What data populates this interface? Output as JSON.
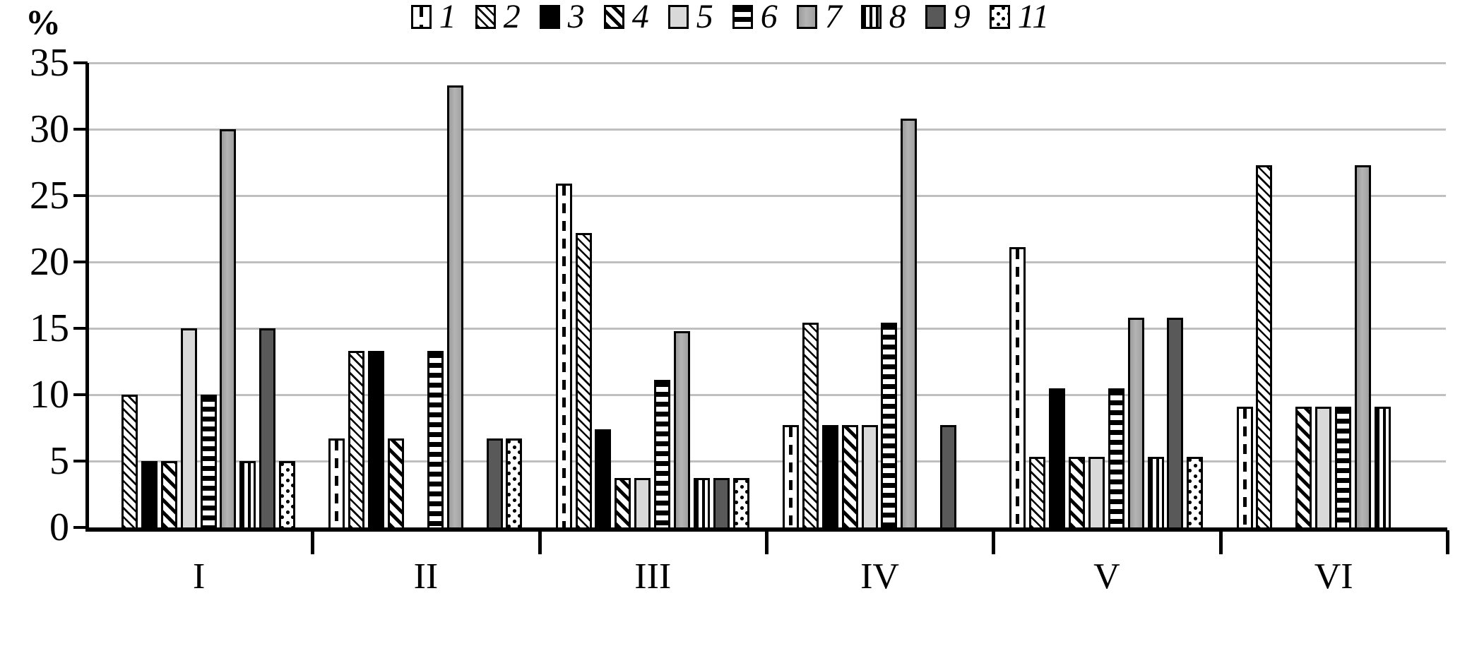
{
  "figure": {
    "background": "#ffffff",
    "bar_outline_color": "#000000",
    "gridline_color": "#bfbfbf",
    "axis_color": "#000000"
  },
  "chart_data": {
    "type": "bar",
    "title": "",
    "ylabel": "%",
    "xlabel": "",
    "ylim": [
      0,
      35
    ],
    "ytick_step": 5,
    "ytick_labels": [
      "0",
      "5",
      "10",
      "15",
      "20",
      "25",
      "30",
      "35"
    ],
    "grid": true,
    "legend_position": "bottom",
    "categories": [
      "I",
      "II",
      "III",
      "IV",
      "V",
      "VI"
    ],
    "series": [
      {
        "name": "1",
        "pattern": "white-vertical-dashed-line",
        "color": "#ffffff",
        "values": [
          0,
          6.7,
          25.9,
          7.7,
          21.1,
          9.1
        ]
      },
      {
        "name": "2",
        "pattern": "thin-diagonal-hatch",
        "color": "#ffffff",
        "values": [
          10.0,
          13.3,
          22.2,
          15.4,
          5.3,
          27.3
        ]
      },
      {
        "name": "3",
        "pattern": "solid-black",
        "color": "#000000",
        "values": [
          5.0,
          13.3,
          7.4,
          7.7,
          10.5,
          0
        ]
      },
      {
        "name": "4",
        "pattern": "bold-diagonal-hatch",
        "color": "#ffffff",
        "values": [
          5.0,
          6.7,
          3.7,
          7.7,
          5.3,
          9.1
        ]
      },
      {
        "name": "5",
        "pattern": "solid-light-gray",
        "color": "#d9d9d9",
        "values": [
          15.0,
          0,
          3.7,
          7.7,
          5.3,
          9.1
        ]
      },
      {
        "name": "6",
        "pattern": "horizontal-stripes",
        "color": "#ffffff",
        "values": [
          10.0,
          13.3,
          11.1,
          15.4,
          10.5,
          9.1
        ]
      },
      {
        "name": "7",
        "pattern": "solid-medium-gray",
        "color": "#a6a6a6",
        "values": [
          30.0,
          33.3,
          14.8,
          30.8,
          15.8,
          27.3
        ]
      },
      {
        "name": "8",
        "pattern": "vertical-stripes",
        "color": "#ffffff",
        "values": [
          5.0,
          0,
          3.7,
          0,
          5.3,
          9.1
        ]
      },
      {
        "name": "9",
        "pattern": "solid-dark-gray",
        "color": "#595959",
        "values": [
          15.0,
          6.7,
          3.7,
          7.7,
          15.8,
          0
        ]
      },
      {
        "name": "11",
        "pattern": "dotted",
        "color": "#ffffff",
        "values": [
          5.0,
          6.7,
          3.7,
          0,
          5.3,
          0
        ]
      }
    ]
  }
}
